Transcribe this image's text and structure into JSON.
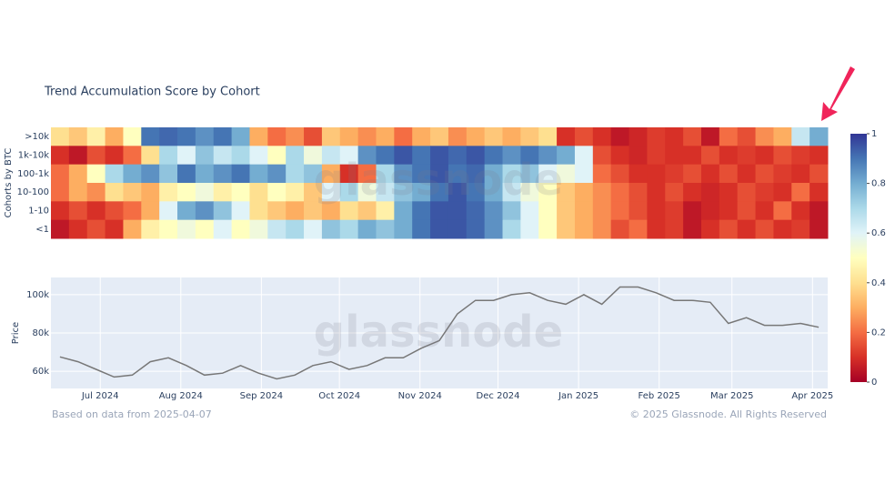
{
  "watermark": "glassnode",
  "footer": {
    "source": "Based on data from 2025-04-07",
    "copyright": "© 2025 Glassnode. All Rights Reserved"
  },
  "chart_data": [
    {
      "type": "heatmap",
      "title": "Trend Accumulation Score by Cohort",
      "y_label": "Cohorts by BTC",
      "xlim": [
        -0.5,
        42.5
      ],
      "zlim": [
        0,
        1
      ],
      "zticks": [
        0,
        0.2,
        0.4,
        0.6,
        0.8,
        1
      ],
      "colorscale": [
        "#a50026",
        "#d73027",
        "#f46d43",
        "#fdae61",
        "#fee090",
        "#ffffbf",
        "#e0f3f8",
        "#abd9e9",
        "#74add1",
        "#4575b4",
        "#313695"
      ],
      "series": [
        {
          "name": ">10k",
          "values": [
            0.4,
            0.35,
            0.45,
            0.3,
            0.5,
            0.9,
            0.92,
            0.9,
            0.85,
            0.9,
            0.8,
            0.3,
            0.2,
            0.25,
            0.15,
            0.35,
            0.3,
            0.25,
            0.3,
            0.2,
            0.3,
            0.35,
            0.25,
            0.3,
            0.35,
            0.3,
            0.35,
            0.4,
            0.1,
            0.15,
            0.1,
            0.05,
            0.08,
            0.12,
            0.1,
            0.15,
            0.05,
            0.2,
            0.15,
            0.25,
            0.3,
            0.65,
            0.8
          ]
        },
        {
          "name": "1k-10k",
          "values": [
            0.1,
            0.05,
            0.15,
            0.1,
            0.2,
            0.4,
            0.7,
            0.6,
            0.75,
            0.65,
            0.7,
            0.6,
            0.5,
            0.7,
            0.55,
            0.65,
            0.6,
            0.85,
            0.9,
            0.95,
            0.9,
            0.95,
            0.92,
            0.95,
            0.9,
            0.85,
            0.9,
            0.85,
            0.8,
            0.6,
            0.15,
            0.1,
            0.08,
            0.12,
            0.1,
            0.1,
            0.15,
            0.1,
            0.12,
            0.1,
            0.15,
            0.12,
            0.1
          ]
        },
        {
          "name": "100-1k",
          "values": [
            0.2,
            0.3,
            0.5,
            0.7,
            0.8,
            0.85,
            0.75,
            0.9,
            0.8,
            0.85,
            0.9,
            0.8,
            0.85,
            0.7,
            0.75,
            0.3,
            0.1,
            0.2,
            0.7,
            0.85,
            0.9,
            0.95,
            0.9,
            0.92,
            0.8,
            0.7,
            0.75,
            0.6,
            0.55,
            0.6,
            0.2,
            0.15,
            0.1,
            0.1,
            0.12,
            0.15,
            0.1,
            0.15,
            0.1,
            0.15,
            0.12,
            0.1,
            0.15
          ]
        },
        {
          "name": "10-100",
          "values": [
            0.2,
            0.3,
            0.25,
            0.4,
            0.35,
            0.3,
            0.45,
            0.5,
            0.55,
            0.45,
            0.5,
            0.4,
            0.5,
            0.45,
            0.35,
            0.6,
            0.7,
            0.55,
            0.65,
            0.75,
            0.8,
            0.9,
            0.95,
            0.9,
            0.8,
            0.65,
            0.55,
            0.5,
            0.35,
            0.3,
            0.25,
            0.2,
            0.15,
            0.1,
            0.15,
            0.1,
            0.08,
            0.1,
            0.15,
            0.12,
            0.1,
            0.2,
            0.1
          ]
        },
        {
          "name": "1-10",
          "values": [
            0.1,
            0.15,
            0.1,
            0.15,
            0.2,
            0.3,
            0.6,
            0.8,
            0.85,
            0.75,
            0.6,
            0.4,
            0.35,
            0.3,
            0.35,
            0.3,
            0.4,
            0.35,
            0.45,
            0.8,
            0.9,
            0.95,
            0.95,
            0.92,
            0.85,
            0.75,
            0.6,
            0.5,
            0.35,
            0.3,
            0.25,
            0.2,
            0.15,
            0.1,
            0.12,
            0.05,
            0.08,
            0.1,
            0.15,
            0.1,
            0.2,
            0.1,
            0.05
          ]
        },
        {
          "name": "<1",
          "values": [
            0.05,
            0.1,
            0.15,
            0.1,
            0.3,
            0.45,
            0.5,
            0.55,
            0.5,
            0.6,
            0.5,
            0.55,
            0.65,
            0.7,
            0.6,
            0.75,
            0.7,
            0.8,
            0.75,
            0.8,
            0.9,
            0.95,
            0.95,
            0.92,
            0.85,
            0.7,
            0.6,
            0.5,
            0.35,
            0.3,
            0.25,
            0.15,
            0.2,
            0.1,
            0.12,
            0.05,
            0.1,
            0.15,
            0.1,
            0.15,
            0.1,
            0.12,
            0.05
          ]
        }
      ]
    },
    {
      "type": "line",
      "y_label": "Price",
      "color": "#777777",
      "grid": true,
      "xlim": [
        -0.5,
        42.5
      ],
      "ylim": [
        51000,
        109000
      ],
      "yticks": [
        {
          "value": 60000,
          "label": "60k"
        },
        {
          "value": 80000,
          "label": "80k"
        },
        {
          "value": 100000,
          "label": "100k"
        }
      ],
      "xticks": [
        {
          "value": 2.23,
          "label": "Jul 2024"
        },
        {
          "value": 6.69,
          "label": "Aug 2024"
        },
        {
          "value": 11.15,
          "label": "Sep 2024"
        },
        {
          "value": 15.47,
          "label": "Oct 2024"
        },
        {
          "value": 19.93,
          "label": "Nov 2024"
        },
        {
          "value": 24.25,
          "label": "Dec 2024"
        },
        {
          "value": 28.71,
          "label": "Jan 2025"
        },
        {
          "value": 33.17,
          "label": "Feb 2025"
        },
        {
          "value": 37.2,
          "label": "Mar 2025"
        },
        {
          "value": 41.66,
          "label": "Apr 2025"
        }
      ],
      "values": [
        67500,
        65000,
        61000,
        57000,
        58000,
        65000,
        67000,
        63000,
        58000,
        59000,
        63000,
        59000,
        56000,
        58000,
        63000,
        65000,
        61000,
        63000,
        67000,
        67000,
        72000,
        76000,
        90000,
        97000,
        97000,
        100000,
        101000,
        97000,
        95000,
        100000,
        95000,
        104000,
        104000,
        101000,
        97000,
        97000,
        96000,
        85000,
        88000,
        84000,
        84000,
        85000,
        83000
      ]
    }
  ]
}
